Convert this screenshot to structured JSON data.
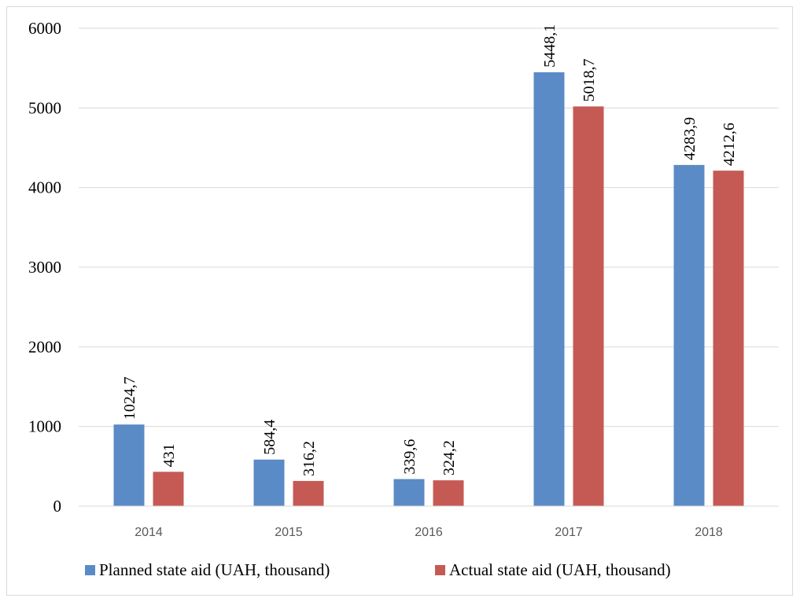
{
  "chart_data": {
    "type": "bar",
    "categories": [
      "2014",
      "2015",
      "2016",
      "2017",
      "2018"
    ],
    "series": [
      {
        "name": "Planned state aid (UAH, thousand)",
        "color": "#5b8bc6",
        "values": [
          1024.7,
          584.4,
          339.6,
          5448.1,
          4283.9
        ],
        "labels": [
          "1024,7",
          "584,4",
          "339,6",
          "5448,1",
          "4283,9"
        ]
      },
      {
        "name": "Actual state aid (UAH, thousand)",
        "color": "#c55a55",
        "values": [
          431,
          316.2,
          324.2,
          5018.7,
          4212.6
        ],
        "labels": [
          "431",
          "316,2",
          "324,2",
          "5018,7",
          "4212,6"
        ]
      }
    ],
    "ylim": [
      0,
      6000
    ],
    "yticks": [
      0,
      1000,
      2000,
      3000,
      4000,
      5000,
      6000
    ],
    "ytick_labels": [
      "0",
      "1000",
      "2000",
      "3000",
      "4000",
      "5000",
      "6000"
    ],
    "grid": true,
    "legend": "bottom",
    "title": "",
    "xlabel": "",
    "ylabel": ""
  }
}
